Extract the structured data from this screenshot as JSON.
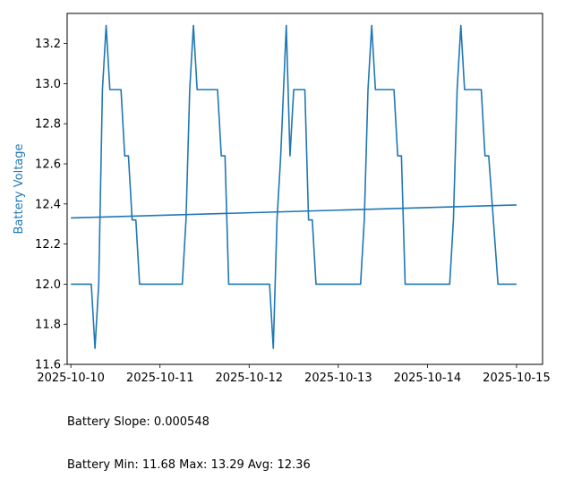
{
  "chart_data": {
    "type": "line",
    "title": "",
    "xlabel": "",
    "ylabel": "Battery Voltage",
    "ylabel_color": "#1f77b4",
    "line_color": "#1f77b4",
    "grid": false,
    "xlim": [
      "2025-10-09T23:00",
      "2025-10-15T07:00"
    ],
    "ylim": [
      11.6,
      13.35
    ],
    "x_ticks": [
      "2025-10-10",
      "2025-10-11",
      "2025-10-12",
      "2025-10-13",
      "2025-10-14",
      "2025-10-15"
    ],
    "y_ticks": [
      "11.6",
      "11.8",
      "12.0",
      "12.2",
      "12.4",
      "12.6",
      "12.8",
      "13.0",
      "13.2"
    ],
    "series": [
      {
        "name": "",
        "points": [
          [
            "2025-10-10T00:00",
            12.0
          ],
          [
            "2025-10-10T05:30",
            12.0
          ],
          [
            "2025-10-10T06:30",
            11.68
          ],
          [
            "2025-10-10T07:30",
            12.0
          ],
          [
            "2025-10-10T08:30",
            12.97
          ],
          [
            "2025-10-10T09:30",
            13.29
          ],
          [
            "2025-10-10T10:30",
            12.97
          ],
          [
            "2025-10-10T13:30",
            12.97
          ],
          [
            "2025-10-10T14:30",
            12.64
          ],
          [
            "2025-10-10T15:30",
            12.64
          ],
          [
            "2025-10-10T16:30",
            12.32
          ],
          [
            "2025-10-10T17:30",
            12.32
          ],
          [
            "2025-10-10T18:30",
            12.0
          ],
          [
            "2025-10-11T06:00",
            12.0
          ],
          [
            "2025-10-11T07:00",
            12.32
          ],
          [
            "2025-10-11T08:00",
            12.97
          ],
          [
            "2025-10-11T09:00",
            13.29
          ],
          [
            "2025-10-11T10:00",
            12.97
          ],
          [
            "2025-10-11T15:30",
            12.97
          ],
          [
            "2025-10-11T16:30",
            12.64
          ],
          [
            "2025-10-11T17:30",
            12.64
          ],
          [
            "2025-10-11T18:30",
            12.0
          ],
          [
            "2025-10-12T05:30",
            12.0
          ],
          [
            "2025-10-12T06:30",
            11.68
          ],
          [
            "2025-10-12T07:30",
            12.32
          ],
          [
            "2025-10-12T08:30",
            12.64
          ],
          [
            "2025-10-12T10:00",
            13.29
          ],
          [
            "2025-10-12T11:00",
            12.64
          ],
          [
            "2025-10-12T12:00",
            12.97
          ],
          [
            "2025-10-12T15:00",
            12.97
          ],
          [
            "2025-10-12T16:00",
            12.32
          ],
          [
            "2025-10-12T17:00",
            12.32
          ],
          [
            "2025-10-12T18:00",
            12.0
          ],
          [
            "2025-10-13T06:00",
            12.0
          ],
          [
            "2025-10-13T07:00",
            12.32
          ],
          [
            "2025-10-13T08:00",
            12.97
          ],
          [
            "2025-10-13T09:00",
            13.29
          ],
          [
            "2025-10-13T10:00",
            12.97
          ],
          [
            "2025-10-13T15:00",
            12.97
          ],
          [
            "2025-10-13T16:00",
            12.64
          ],
          [
            "2025-10-13T17:00",
            12.64
          ],
          [
            "2025-10-13T18:00",
            12.0
          ],
          [
            "2025-10-14T06:00",
            12.0
          ],
          [
            "2025-10-14T07:00",
            12.32
          ],
          [
            "2025-10-14T08:00",
            12.97
          ],
          [
            "2025-10-14T09:00",
            13.29
          ],
          [
            "2025-10-14T10:00",
            12.97
          ],
          [
            "2025-10-14T14:30",
            12.97
          ],
          [
            "2025-10-14T15:30",
            12.64
          ],
          [
            "2025-10-14T16:30",
            12.64
          ],
          [
            "2025-10-14T19:00",
            12.0
          ],
          [
            "2025-10-14T24:00",
            12.0
          ]
        ]
      },
      {
        "name": "",
        "points": [
          [
            "2025-10-10T00:00",
            12.33
          ],
          [
            "2025-10-14T24:00",
            12.395
          ]
        ]
      }
    ]
  },
  "footer": {
    "slope_text": "Battery Slope: 0.000548",
    "stats_text": "Battery Min: 11.68 Max: 13.29 Avg: 12.36"
  }
}
